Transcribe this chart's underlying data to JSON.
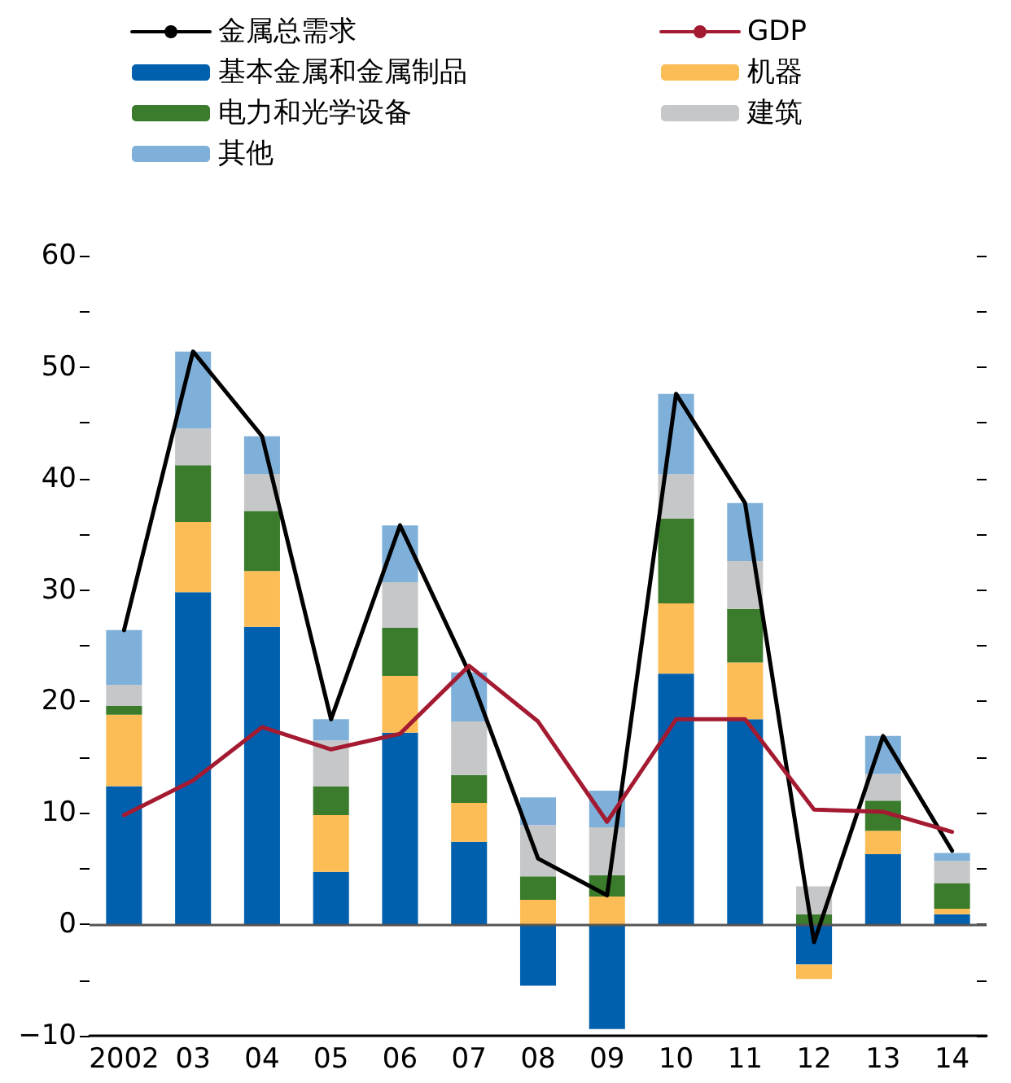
{
  "chart_data": {
    "type": "bar",
    "stacked": true,
    "categories": [
      "2002",
      "03",
      "04",
      "05",
      "06",
      "07",
      "08",
      "09",
      "10",
      "11",
      "12",
      "13",
      "14"
    ],
    "series": [
      {
        "name": "基本金属和金属制品",
        "color": "#0060ad",
        "values": [
          12.4,
          29.8,
          26.7,
          4.7,
          17.2,
          7.4,
          -5.5,
          -9.4,
          22.5,
          18.4,
          -3.6,
          6.3,
          0.9
        ]
      },
      {
        "name": "机器",
        "color": "#fdbd56",
        "values": [
          6.4,
          6.3,
          5.0,
          5.1,
          5.1,
          3.5,
          2.2,
          2.5,
          6.3,
          5.1,
          -1.3,
          2.1,
          0.5
        ]
      },
      {
        "name": "电力和光学设备",
        "color": "#3a7b2c",
        "values": [
          0.8,
          5.1,
          5.4,
          2.6,
          4.3,
          2.5,
          2.1,
          1.9,
          7.6,
          4.8,
          0.9,
          2.7,
          2.3
        ]
      },
      {
        "name": "建筑",
        "color": "#c6c7c9",
        "values": [
          1.9,
          3.3,
          3.3,
          4.1,
          4.1,
          4.8,
          4.6,
          4.3,
          4.0,
          4.3,
          2.5,
          2.4,
          2.0
        ]
      },
      {
        "name": "其他",
        "color": "#7fb0d9",
        "values": [
          4.9,
          6.9,
          3.4,
          1.9,
          5.1,
          4.4,
          2.5,
          3.3,
          7.2,
          5.2,
          null,
          3.4,
          0.7
        ]
      },
      {
        "name": "金属总需求",
        "type": "line",
        "color": "#000000",
        "values": [
          26.4,
          51.4,
          43.8,
          18.4,
          35.8,
          22.6,
          5.9,
          2.6,
          47.6,
          37.8,
          -1.6,
          16.9,
          6.6
        ]
      },
      {
        "name": "GDP",
        "type": "line",
        "color": "#a31a31",
        "values": [
          9.8,
          12.9,
          17.7,
          15.7,
          17.1,
          23.2,
          18.2,
          9.2,
          18.4,
          18.4,
          10.3,
          10.1,
          8.3
        ]
      }
    ],
    "ylim": [
      -10,
      60
    ],
    "yticks": [
      -10,
      {
        "value": -5,
        "label": null
      },
      0,
      {
        "value": 5,
        "label": null
      },
      10,
      {
        "value": 15,
        "label": null
      },
      20,
      {
        "value": 25,
        "label": null
      },
      30,
      {
        "value": 35,
        "label": null
      },
      40,
      {
        "value": 45,
        "label": null
      },
      50,
      {
        "value": 55,
        "label": null
      },
      60
    ],
    "ref_lines": [
      {
        "axis": "y",
        "value": 0,
        "color": "#555555"
      }
    ],
    "grid": false,
    "legend": "top",
    "marker": "none",
    "line_style": "solid"
  }
}
